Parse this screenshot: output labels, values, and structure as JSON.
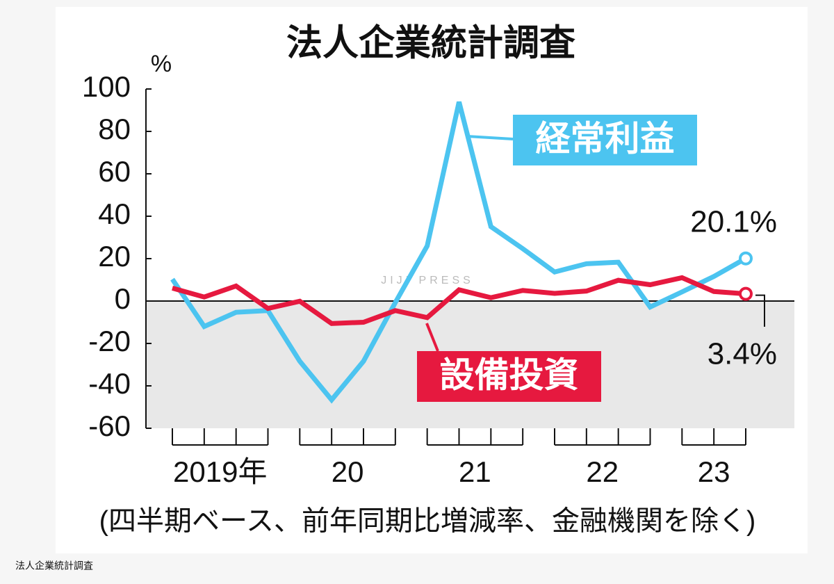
{
  "chart_data": {
    "type": "line",
    "title": "法人企業統計調査",
    "y_unit": "%",
    "subtitle": "(四半期ベース、前年同期比増減率、金融機関を除く)",
    "watermark": "JIJI PRESS",
    "caption": "法人企業統計調査",
    "categories": [
      "2019年",
      null,
      null,
      null,
      "20",
      null,
      null,
      null,
      "21",
      null,
      null,
      null,
      "22",
      null,
      null,
      null,
      "23",
      null,
      null
    ],
    "series": [
      {
        "name": "経常利益",
        "color": "#4cc4f0",
        "values": [
          10.3,
          -12.0,
          -5.3,
          -4.5,
          -28.4,
          -46.6,
          -28.4,
          -0.7,
          26.0,
          93.9,
          35.1,
          24.7,
          13.7,
          17.6,
          18.3,
          -2.8,
          4.3,
          11.6,
          20.1
        ],
        "value_labels": [
          null,
          null,
          null,
          null,
          null,
          null,
          null,
          null,
          null,
          null,
          null,
          null,
          null,
          null,
          null,
          null,
          null,
          null,
          "20.1%"
        ]
      },
      {
        "name": "設備投資",
        "color": "#e6193f",
        "values": [
          6.1,
          1.9,
          7.1,
          -3.5,
          -0.1,
          -10.6,
          -10.0,
          -4.5,
          -7.8,
          5.3,
          1.6,
          5.0,
          3.6,
          4.7,
          9.8,
          7.7,
          11.0,
          4.5,
          3.4
        ],
        "value_labels": [
          null,
          null,
          null,
          null,
          null,
          null,
          null,
          null,
          null,
          null,
          null,
          null,
          null,
          null,
          null,
          null,
          null,
          null,
          "3.4%"
        ]
      }
    ],
    "ylim": [
      -60,
      100
    ],
    "yticks": [
      -60,
      -40,
      -20,
      0,
      20,
      40,
      60,
      80,
      100
    ]
  }
}
